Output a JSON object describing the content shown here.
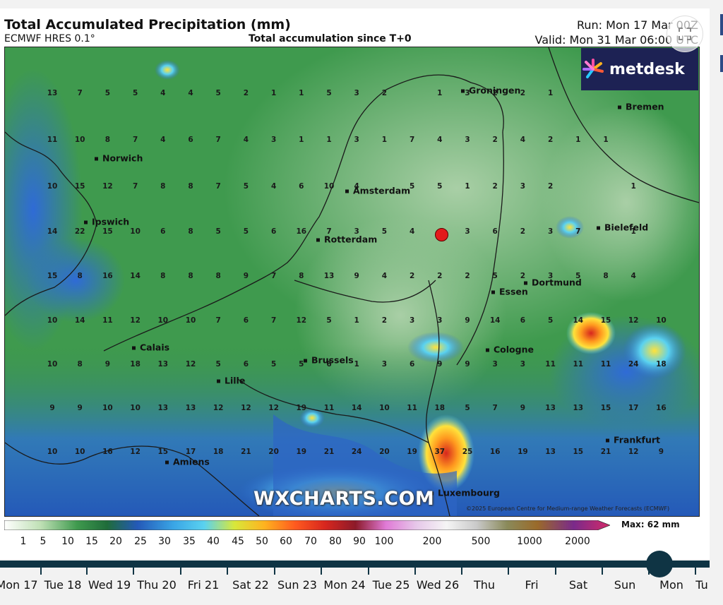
{
  "header": {
    "title": "Total Accumulated Precipitation (mm)",
    "model": "ECMWF HRES 0.1°",
    "subtitle": "Total accumulation since T+0",
    "run": "Run: Mon 17 Mar 00Z",
    "valid": "Valid: Mon 31 Mar 06:00 UTC"
  },
  "logo": {
    "text": "metdesk"
  },
  "watermark": "WXCHARTS.COM",
  "copyright": "©2025 European Centre for Medium-range Weather Forecasts (ECMWF)",
  "cities": [
    {
      "name": "Groningen"
    },
    {
      "name": "Bremen"
    },
    {
      "name": "Norwich"
    },
    {
      "name": "Amsterdam"
    },
    {
      "name": "Ipswich"
    },
    {
      "name": "Rotterdam"
    },
    {
      "name": "Bielefeld"
    },
    {
      "name": "Dortmund"
    },
    {
      "name": "Essen"
    },
    {
      "name": "Calais"
    },
    {
      "name": "Cologne"
    },
    {
      "name": "Brussels"
    },
    {
      "name": "Lille"
    },
    {
      "name": "Frankfurt"
    },
    {
      "name": "Amiens"
    },
    {
      "name": "Luxembourg"
    }
  ],
  "grid_values": [
    [
      "13",
      "7",
      "5",
      "5",
      "4",
      "4",
      "5",
      "2",
      "1",
      "1",
      "5",
      "3",
      "2",
      "",
      "1",
      "3",
      "2",
      "2",
      "1"
    ],
    [
      "11",
      "10",
      "8",
      "7",
      "4",
      "6",
      "7",
      "4",
      "3",
      "1",
      "1",
      "3",
      "1",
      "7",
      "4",
      "3",
      "2",
      "4",
      "2",
      "1",
      "1"
    ],
    [
      "10",
      "15",
      "12",
      "7",
      "8",
      "8",
      "7",
      "5",
      "4",
      "6",
      "10",
      "4",
      "",
      "5",
      "5",
      "1",
      "2",
      "3",
      "2",
      "",
      "",
      "1"
    ],
    [
      "14",
      "22",
      "15",
      "10",
      "6",
      "8",
      "5",
      "5",
      "6",
      "16",
      "7",
      "3",
      "5",
      "4",
      "",
      "3",
      "6",
      "2",
      "3",
      "7",
      "",
      "1"
    ],
    [
      "15",
      "8",
      "16",
      "14",
      "8",
      "8",
      "8",
      "9",
      "7",
      "8",
      "13",
      "9",
      "4",
      "2",
      "2",
      "2",
      "5",
      "2",
      "3",
      "5",
      "8",
      "4"
    ],
    [
      "10",
      "14",
      "11",
      "12",
      "10",
      "10",
      "7",
      "6",
      "7",
      "12",
      "5",
      "1",
      "2",
      "3",
      "3",
      "9",
      "14",
      "6",
      "5",
      "14",
      "15",
      "12",
      "10"
    ],
    [
      "10",
      "8",
      "9",
      "18",
      "13",
      "12",
      "5",
      "6",
      "5",
      "5",
      "6",
      "1",
      "3",
      "6",
      "9",
      "9",
      "3",
      "3",
      "11",
      "11",
      "11",
      "24",
      "18"
    ],
    [
      "9",
      "9",
      "10",
      "10",
      "13",
      "13",
      "12",
      "12",
      "12",
      "19",
      "11",
      "14",
      "10",
      "11",
      "18",
      "5",
      "7",
      "9",
      "13",
      "13",
      "15",
      "17",
      "16"
    ],
    [
      "10",
      "10",
      "16",
      "12",
      "15",
      "17",
      "18",
      "21",
      "20",
      "19",
      "21",
      "24",
      "20",
      "19",
      "37",
      "25",
      "16",
      "19",
      "13",
      "15",
      "21",
      "12",
      "9"
    ]
  ],
  "colorbar": {
    "labels": [
      "1",
      "5",
      "10",
      "15",
      "20",
      "25",
      "30",
      "35",
      "40",
      "45",
      "50",
      "60",
      "70",
      "80",
      "90",
      "100",
      "200",
      "500",
      "1000",
      "2000"
    ],
    "max_label": "Max: 62 mm"
  },
  "timeline": {
    "days": [
      "Mon 17",
      "Tue 18",
      "Wed 19",
      "Thu 20",
      "Fri 21",
      "Sat 22",
      "Sun 23",
      "Mon 24",
      "Tue 25",
      "Wed 26",
      "Thu",
      "Fri",
      "Sat",
      "Sun",
      "Mon",
      "Tu"
    ],
    "selected": "Mon"
  },
  "colors": {
    "land_green": "#3f9a4e",
    "light_green": "#7fba83",
    "sea_blue": "#2e6cc9",
    "accent": "#0f3444",
    "marker": "#e31b1b"
  }
}
